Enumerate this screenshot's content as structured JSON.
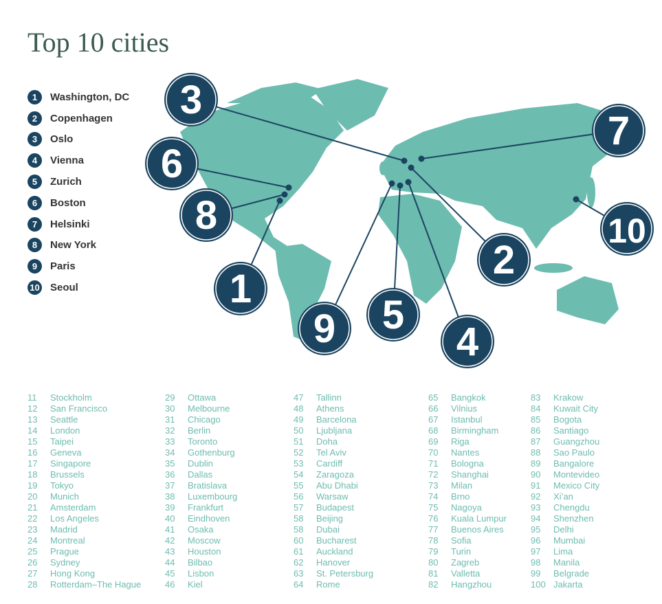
{
  "title": "Top 10 cities",
  "colors": {
    "land": "#6dbcb0",
    "marker": "#1b4460",
    "list_text": "#6dbcb0"
  },
  "top10": [
    {
      "rank": "1",
      "name": "Washington, DC"
    },
    {
      "rank": "2",
      "name": "Copenhagen"
    },
    {
      "rank": "3",
      "name": "Oslo"
    },
    {
      "rank": "4",
      "name": "Vienna"
    },
    {
      "rank": "5",
      "name": "Zurich"
    },
    {
      "rank": "6",
      "name": "Boston"
    },
    {
      "rank": "7",
      "name": "Helsinki"
    },
    {
      "rank": "8",
      "name": "New York"
    },
    {
      "rank": "9",
      "name": "Paris"
    },
    {
      "rank": "10",
      "name": "Seoul"
    }
  ],
  "rest": [
    [
      [
        "11",
        "Stockholm"
      ],
      [
        "12",
        "San Francisco"
      ],
      [
        "13",
        "Seattle"
      ],
      [
        "14",
        "London"
      ],
      [
        "15",
        "Taipei"
      ],
      [
        "16",
        "Geneva"
      ],
      [
        "17",
        "Singapore"
      ],
      [
        "18",
        "Brussels"
      ],
      [
        "19",
        "Tokyo"
      ],
      [
        "20",
        "Munich"
      ],
      [
        "21",
        "Amsterdam"
      ],
      [
        "22",
        "Los Angeles"
      ],
      [
        "23",
        "Madrid"
      ],
      [
        "24",
        "Montreal"
      ],
      [
        "25",
        "Prague"
      ],
      [
        "26",
        "Sydney"
      ],
      [
        "27",
        "Hong Kong"
      ],
      [
        "28",
        "Rotterdam–The Hague"
      ]
    ],
    [
      [
        "29",
        "Ottawa"
      ],
      [
        "30",
        "Melbourne"
      ],
      [
        "31",
        "Chicago"
      ],
      [
        "32",
        "Berlin"
      ],
      [
        "33",
        "Toronto"
      ],
      [
        "34",
        "Gothenburg"
      ],
      [
        "35",
        "Dublin"
      ],
      [
        "36",
        "Dallas"
      ],
      [
        "37",
        "Bratislava"
      ],
      [
        "38",
        "Luxembourg"
      ],
      [
        "39",
        "Frankfurt"
      ],
      [
        "40",
        "Eindhoven"
      ],
      [
        "41",
        "Osaka"
      ],
      [
        "42",
        "Moscow"
      ],
      [
        "43",
        "Houston"
      ],
      [
        "44",
        "Bilbao"
      ],
      [
        "45",
        "Lisbon"
      ],
      [
        "46",
        "Kiel"
      ]
    ],
    [
      [
        "47",
        "Tallinn"
      ],
      [
        "48",
        "Athens"
      ],
      [
        "49",
        "Barcelona"
      ],
      [
        "50",
        "Ljubljana"
      ],
      [
        "51",
        "Doha"
      ],
      [
        "52",
        "Tel Aviv"
      ],
      [
        "53",
        "Cardiff"
      ],
      [
        "54",
        "Zaragoza"
      ],
      [
        "55",
        "Abu Dhabi"
      ],
      [
        "56",
        "Warsaw"
      ],
      [
        "57",
        "Budapest"
      ],
      [
        "58",
        "Beijing"
      ],
      [
        "58",
        "Dubai"
      ],
      [
        "60",
        "Bucharest"
      ],
      [
        "61",
        "Auckland"
      ],
      [
        "62",
        "Hanover"
      ],
      [
        "63",
        "St. Petersburg"
      ],
      [
        "64",
        "Rome"
      ]
    ],
    [
      [
        "65",
        "Bangkok"
      ],
      [
        "66",
        "Vilnius"
      ],
      [
        "67",
        "Istanbul"
      ],
      [
        "68",
        "Birmingham"
      ],
      [
        "69",
        "Riga"
      ],
      [
        "70",
        "Nantes"
      ],
      [
        "71",
        "Bologna"
      ],
      [
        "72",
        "Shanghai"
      ],
      [
        "73",
        "Milan"
      ],
      [
        "74",
        "Brno"
      ],
      [
        "75",
        "Nagoya"
      ],
      [
        "76",
        "Kuala Lumpur"
      ],
      [
        "77",
        "Buenos Aires"
      ],
      [
        "78",
        "Sofia"
      ],
      [
        "79",
        "Turin"
      ],
      [
        "80",
        "Zagreb"
      ],
      [
        "81",
        "Valletta"
      ],
      [
        "82",
        "Hangzhou"
      ]
    ],
    [
      [
        "83",
        "Krakow"
      ],
      [
        "84",
        "Kuwait City"
      ],
      [
        "85",
        "Bogota"
      ],
      [
        "86",
        "Santiago"
      ],
      [
        "87",
        "Guangzhou"
      ],
      [
        "88",
        "Sao Paulo"
      ],
      [
        "89",
        "Bangalore"
      ],
      [
        "90",
        "Montevideo"
      ],
      [
        "91",
        "Mexico City"
      ],
      [
        "92",
        "Xi’an"
      ],
      [
        "93",
        "Chengdu"
      ],
      [
        "94",
        "Shenzhen"
      ],
      [
        "95",
        "Delhi"
      ],
      [
        "96",
        "Mumbai"
      ],
      [
        "97",
        "Lima"
      ],
      [
        "98",
        "Manila"
      ],
      [
        "99",
        "Belgrade"
      ],
      [
        "100",
        "Jakarta"
      ]
    ]
  ]
}
